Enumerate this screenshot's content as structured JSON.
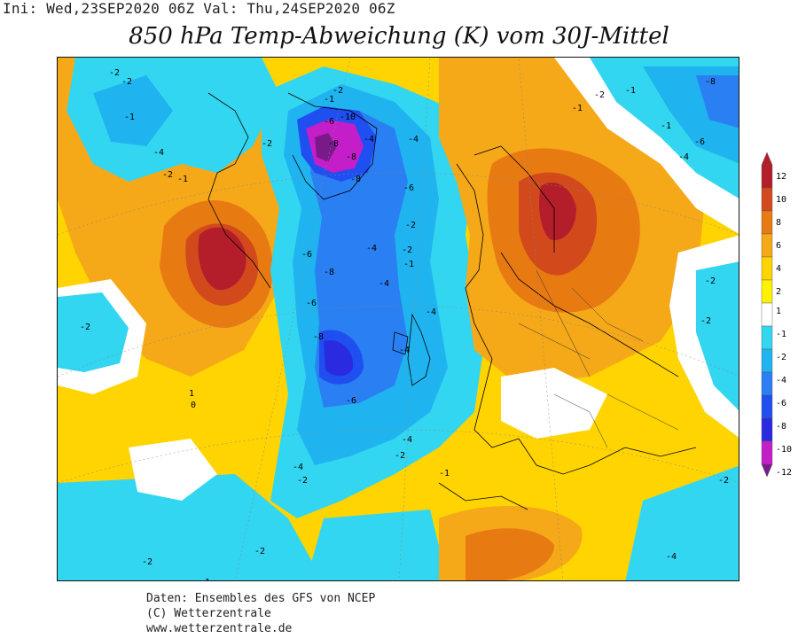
{
  "header": {
    "init_label": "Ini:",
    "init_time": "Wed,23SEP2020 06Z",
    "valid_label": "Val:",
    "valid_time": "Thu,24SEP2020 06Z"
  },
  "title": "850 hPa Temp-Abweichung (K) vom 30J-Mittel",
  "footer": {
    "line1": "Daten: Ensembles des GFS von NCEP",
    "line2": "(C) Wetterzentrale",
    "line3": "www.wetterzentrale.de"
  },
  "legend": {
    "levels": [
      "12",
      "10",
      "8",
      "6",
      "4",
      "2",
      "1",
      "-1",
      "-2",
      "-4",
      "-6",
      "-8",
      "-10",
      "-12"
    ],
    "colors": {
      "p10_12": "#b41e2a",
      "p8_10": "#d2491c",
      "p6_8": "#e87a12",
      "p4_6": "#f5a818",
      "p2_4": "#ffd400",
      "p1_2": "#fff200",
      "neutral": "#ffffff",
      "m1_2": "#33d6f0",
      "m2_4": "#1fb4f0",
      "m4_6": "#2a7ff2",
      "m6_8": "#1f4ff0",
      "m8_10": "#2a2ae0",
      "m10_12": "#c41ec8",
      "m12": "#7a1a8a"
    }
  },
  "contour_labels": [
    "-2",
    "-2",
    "-1",
    "-4",
    "-2",
    "-1",
    "-2",
    "-1",
    "-2",
    "-4",
    "-6",
    "-8",
    "-10",
    "-8",
    "-8",
    "-6",
    "-4",
    "-2",
    "-6",
    "-8",
    "-6",
    "-8",
    "-6",
    "-4",
    "-4",
    "-4",
    "-2",
    "-1",
    "-4",
    "-4",
    "-4",
    "-2",
    "-2",
    "-1",
    "-2",
    "-2",
    "-2",
    "-2",
    "-4",
    "-6",
    "-8",
    "-1",
    "-1",
    "-2",
    "-4",
    "-2",
    "-2",
    "-1",
    "-1",
    "1",
    "0"
  ]
}
